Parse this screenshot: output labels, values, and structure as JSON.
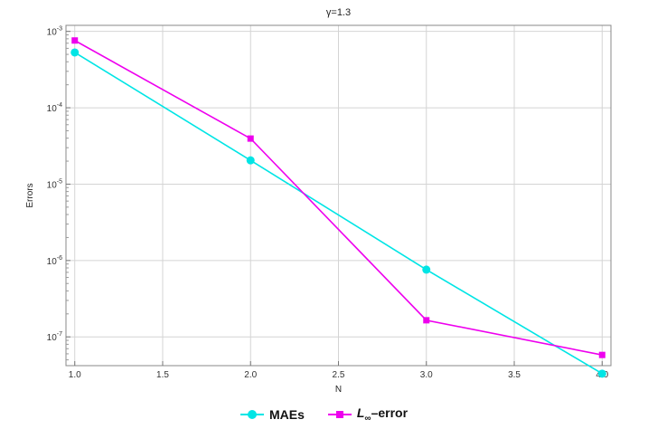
{
  "chart_data": {
    "type": "line",
    "title": "γ=1.3",
    "xlabel": "N",
    "ylabel": "Errors",
    "x": [
      1.0,
      2.0,
      3.0,
      4.0
    ],
    "xlim": [
      0.95,
      4.05
    ],
    "xticks": [
      "1.0",
      "1.5",
      "2.0",
      "2.5",
      "3.0",
      "3.5",
      "4.0"
    ],
    "yscale": "log",
    "ylim": [
      4.2e-08,
      0.0012
    ],
    "yticks": [
      {
        "base": "10",
        "exp": "-3"
      },
      {
        "base": "10",
        "exp": "-4"
      },
      {
        "base": "10",
        "exp": "-5"
      },
      {
        "base": "10",
        "exp": "-6"
      },
      {
        "base": "10",
        "exp": "-7"
      }
    ],
    "grid": true,
    "legend_position": "bottom",
    "series": [
      {
        "name": "MAEs",
        "color": "#00E5E5",
        "marker": "circle",
        "values": [
          0.00053,
          2.05e-05,
          7.6e-07,
          3.3e-08
        ]
      },
      {
        "name": "L∞–error",
        "label_main": "L",
        "label_sub": "∞",
        "label_rest": "–error",
        "color": "#EE00EE",
        "marker": "square",
        "values": [
          0.00076,
          3.95e-05,
          1.65e-07,
          5.8e-08
        ]
      }
    ]
  }
}
